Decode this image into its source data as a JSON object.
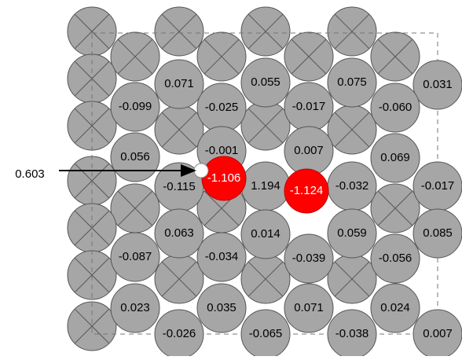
{
  "annotation": "0.603",
  "atoms": [
    {
      "label": "0.071"
    },
    {
      "label": "0.055"
    },
    {
      "label": "0.075"
    },
    {
      "label": "0.031"
    },
    {
      "label": "-0.099"
    },
    {
      "label": "-0.025"
    },
    {
      "label": "-0.017"
    },
    {
      "label": "-0.060"
    },
    {
      "label": "0.056"
    },
    {
      "label": "-0.001"
    },
    {
      "label": "0.007"
    },
    {
      "label": "0.069"
    },
    {
      "label": "-0.115"
    },
    {
      "label": "1.194"
    },
    {
      "label": "-0.032"
    },
    {
      "label": "-0.017"
    },
    {
      "label": "0.063"
    },
    {
      "label": "0.014"
    },
    {
      "label": "0.059"
    },
    {
      "label": "0.085"
    },
    {
      "label": "-0.087"
    },
    {
      "label": "-0.034"
    },
    {
      "label": "-0.039"
    },
    {
      "label": "-0.056"
    },
    {
      "label": "0.023"
    },
    {
      "label": "0.035"
    },
    {
      "label": "0.071"
    },
    {
      "label": "0.024"
    },
    {
      "label": "-0.026"
    },
    {
      "label": "-0.065"
    },
    {
      "label": "-0.038"
    },
    {
      "label": "0.007"
    },
    {
      "label": "-1.106"
    },
    {
      "label": "-1.124"
    }
  ]
}
